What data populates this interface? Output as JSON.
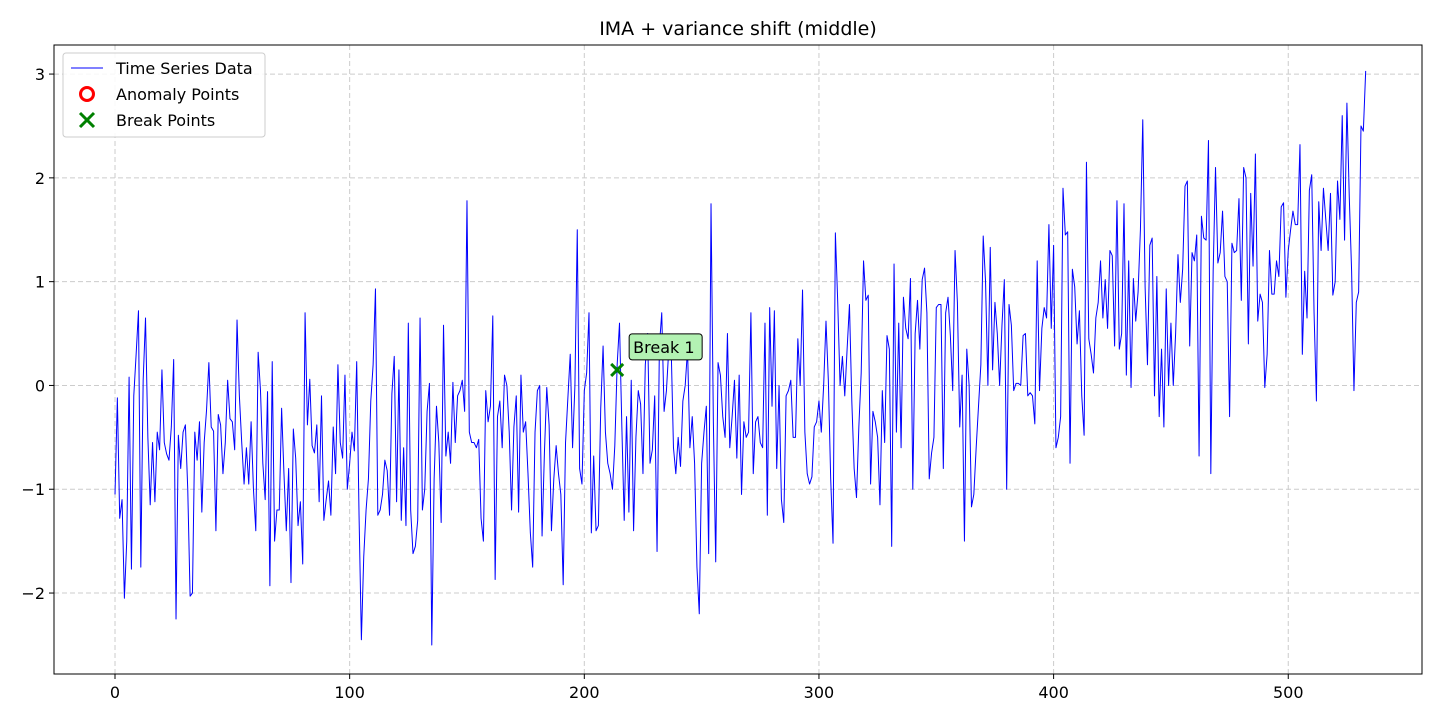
{
  "chart_data": {
    "type": "line",
    "title": "IMA + variance shift (middle)",
    "xlabel": "",
    "ylabel": "",
    "xlim": [
      -26,
      557
    ],
    "ylim": [
      -2.78,
      3.28
    ],
    "x_ticks": [
      0,
      100,
      200,
      300,
      400,
      500
    ],
    "y_ticks": [
      -2,
      -1,
      0,
      1,
      2,
      3
    ],
    "grid": true,
    "legend_position": "top-left",
    "colors": {
      "series": "#0000ff",
      "anomaly": "#ff0000",
      "break": "#008000",
      "annotation_fill": "#b3f2b3",
      "grid": "#cccccc"
    },
    "legend": [
      {
        "label": "Time Series Data",
        "marker": "line"
      },
      {
        "label": "Anomaly Points",
        "marker": "circle"
      },
      {
        "label": "Break Points",
        "marker": "x"
      }
    ],
    "series": [
      {
        "name": "Time Series Data",
        "x_start": 0,
        "x_step": 1,
        "values": [
          -1.05,
          -0.12,
          -1.28,
          -1.1,
          -2.05,
          -1.5,
          0.08,
          -1.77,
          -0.1,
          0.3,
          0.72,
          -1.75,
          0.05,
          0.65,
          -0.5,
          -1.15,
          -0.55,
          -1.12,
          -0.45,
          -0.62,
          0.15,
          -0.55,
          -0.66,
          -0.72,
          -0.4,
          0.25,
          -2.25,
          -0.48,
          -0.8,
          -0.45,
          -0.38,
          -1.0,
          -2.03,
          -2.0,
          -0.45,
          -0.72,
          -0.35,
          -1.22,
          -0.55,
          -0.24,
          0.22,
          -0.4,
          -0.44,
          -1.4,
          -0.28,
          -0.38,
          -0.85,
          -0.55,
          0.05,
          -0.32,
          -0.35,
          -0.62,
          0.63,
          -0.1,
          -0.55,
          -0.95,
          -0.6,
          -0.95,
          -0.35,
          -1.0,
          -1.4,
          0.32,
          -0.05,
          -0.75,
          -1.1,
          -0.06,
          -1.93,
          0.23,
          -1.5,
          -1.2,
          -1.2,
          -0.22,
          -0.85,
          -1.4,
          -0.8,
          -1.9,
          -0.42,
          -0.7,
          -1.35,
          -1.12,
          -1.72,
          0.7,
          -0.38,
          0.06,
          -0.58,
          -0.65,
          -0.38,
          -1.12,
          -0.1,
          -1.3,
          -1.1,
          -0.92,
          -1.25,
          -0.4,
          -0.85,
          0.2,
          -0.55,
          -0.7,
          0.1,
          -1.0,
          -0.75,
          -0.45,
          -0.63,
          0.23,
          -1.25,
          -2.45,
          -1.65,
          -1.2,
          -0.9,
          -0.15,
          0.2,
          0.93,
          -1.25,
          -1.2,
          -1.05,
          -0.72,
          -0.82,
          -1.25,
          -0.08,
          0.28,
          -1.12,
          0.15,
          -1.3,
          -0.6,
          -1.35,
          0.6,
          -1.2,
          -1.62,
          -1.55,
          -1.3,
          0.65,
          -1.2,
          -1.0,
          -0.25,
          0.02,
          -2.5,
          -0.9,
          -0.2,
          -0.55,
          -1.32,
          0.58,
          -0.68,
          -0.45,
          -0.75,
          0.03,
          -0.55,
          -0.1,
          -0.05,
          0.05,
          -0.25,
          1.78,
          -0.45,
          -0.55,
          -0.55,
          -0.6,
          -0.52,
          -1.28,
          -1.5,
          -0.05,
          -0.35,
          -0.2,
          0.67,
          -1.87,
          -0.3,
          -0.15,
          -0.6,
          0.1,
          0.0,
          -0.45,
          -1.2,
          -0.4,
          -0.1,
          -1.22,
          0.1,
          -0.45,
          -0.35,
          -0.85,
          -1.42,
          -1.75,
          -0.45,
          -0.05,
          0.0,
          -1.45,
          -0.65,
          -0.02,
          -0.38,
          -1.4,
          -0.9,
          -0.58,
          -0.85,
          -1.05,
          -1.92,
          -0.55,
          -0.12,
          0.3,
          -0.6,
          0.0,
          1.5,
          -0.8,
          -0.95,
          -0.05,
          0.12,
          0.7,
          -1.42,
          -0.68,
          -1.4,
          -1.35,
          -0.22,
          0.38,
          -0.45,
          -0.75,
          -0.85,
          -1.0,
          -0.58,
          0.2,
          0.6,
          -0.4,
          -1.3,
          -0.3,
          -1.22,
          0.05,
          -1.4,
          -0.5,
          -0.05,
          -0.18,
          -0.85,
          0.2,
          0.5,
          -0.75,
          -0.62,
          -0.1,
          -1.6,
          0.38,
          0.7,
          -0.25,
          -0.05,
          0.35,
          0.38,
          -0.6,
          -0.85,
          -0.5,
          -0.78,
          -0.15,
          0.0,
          0.35,
          -0.6,
          -0.3,
          -0.75,
          -1.75,
          -2.2,
          -0.75,
          -0.45,
          -0.2,
          -1.62,
          1.75,
          -0.35,
          -1.7,
          0.22,
          0.1,
          -0.3,
          -0.5,
          0.5,
          -0.6,
          -0.3,
          0.05,
          -0.7,
          0.1,
          -1.05,
          -0.35,
          -0.5,
          -0.45,
          0.7,
          -0.85,
          -0.35,
          -0.3,
          -0.55,
          -0.6,
          0.6,
          -1.25,
          0.75,
          -0.2,
          0.72,
          -0.8,
          0.0,
          -1.1,
          -1.32,
          -0.1,
          -0.05,
          0.05,
          -0.5,
          -0.5,
          0.45,
          0.0,
          0.92,
          -0.45,
          -0.85,
          -0.95,
          -0.88,
          -0.4,
          -0.35,
          -0.15,
          -0.45,
          0.0,
          0.62,
          0.05,
          -0.9,
          -1.52,
          1.47,
          0.8,
          0.0,
          0.28,
          -0.1,
          0.35,
          0.78,
          -0.15,
          -0.8,
          -1.08,
          -0.4,
          0.12,
          1.2,
          0.82,
          0.87,
          -0.95,
          -0.25,
          -0.35,
          -0.5,
          -1.15,
          -0.05,
          -0.55,
          0.48,
          0.35,
          -1.55,
          1.17,
          -0.45,
          0.6,
          -0.6,
          0.85,
          0.55,
          0.45,
          1.03,
          -1.0,
          0.5,
          0.82,
          0.35,
          1.02,
          1.13,
          0.7,
          -0.9,
          -0.65,
          -0.5,
          0.75,
          0.78,
          0.78,
          -0.8,
          0.7,
          0.85,
          0.48,
          -0.05,
          1.3,
          0.8,
          -0.4,
          0.1,
          -1.5,
          0.35,
          0.0,
          -1.17,
          -1.05,
          -0.6,
          -0.2,
          0.2,
          1.44,
          1.0,
          0.0,
          1.33,
          0.15,
          0.8,
          0.5,
          0.0,
          0.58,
          1.02,
          -1.0,
          0.78,
          0.58,
          -0.05,
          0.02,
          0.02,
          0.0,
          0.48,
          0.5,
          -0.1,
          -0.07,
          -0.1,
          -0.37,
          1.2,
          -0.05,
          0.55,
          0.75,
          0.65,
          1.55,
          0.55,
          1.35,
          -0.6,
          -0.5,
          -0.3,
          1.9,
          1.45,
          1.48,
          -0.75,
          1.12,
          0.95,
          0.4,
          0.72,
          -0.1,
          -0.48,
          2.15,
          0.45,
          0.3,
          0.12,
          0.65,
          0.8,
          1.2,
          0.65,
          1.02,
          0.55,
          1.3,
          1.25,
          0.38,
          1.78,
          0.35,
          0.5,
          1.75,
          0.1,
          1.2,
          -0.02,
          1.03,
          0.62,
          0.9,
          1.5,
          2.56,
          0.95,
          0.2,
          1.35,
          1.42,
          -0.1,
          1.05,
          -0.3,
          0.35,
          -0.4,
          0.93,
          0.0,
          0.6,
          0.0,
          0.5,
          1.26,
          0.8,
          1.12,
          1.92,
          1.97,
          0.38,
          1.28,
          1.2,
          1.45,
          -0.68,
          1.63,
          1.42,
          1.4,
          2.36,
          -0.85,
          1.1,
          2.1,
          1.18,
          1.28,
          1.68,
          1.05,
          1.0,
          -0.3,
          1.37,
          1.28,
          1.3,
          1.8,
          0.82,
          2.1,
          2.0,
          0.4,
          1.85,
          1.15,
          2.23,
          0.62,
          0.88,
          0.8,
          -0.02,
          0.3,
          1.3,
          0.88,
          0.88,
          1.2,
          1.05,
          1.72,
          1.76,
          0.85,
          1.3,
          1.5,
          1.68,
          1.55,
          1.55,
          2.32,
          0.3,
          1.1,
          0.65,
          1.88,
          2.03,
          0.7,
          -0.15,
          1.77,
          1.3,
          1.9,
          1.6,
          1.3,
          1.85,
          0.87,
          1.0,
          1.97,
          1.6,
          2.6,
          1.4,
          2.72,
          1.82,
          1.1,
          -0.05,
          0.8,
          0.9,
          2.5,
          2.45,
          3.03
        ]
      }
    ],
    "break_points": [
      {
        "x": 214,
        "y": 0.15,
        "label": "Break 1"
      }
    ],
    "anomaly_points": []
  }
}
